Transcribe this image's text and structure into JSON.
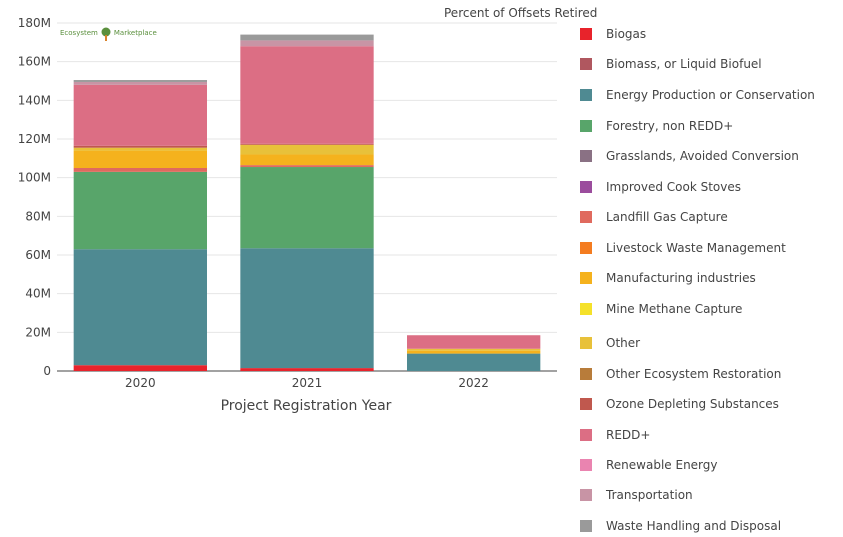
{
  "chart_data": {
    "type": "bar",
    "stacked": true,
    "categories": [
      "2020",
      "2021",
      "2022"
    ],
    "xlabel": "Project Registration Year",
    "ylabel": "",
    "ylim": [
      0,
      180000000
    ],
    "yticks": [
      "0",
      "20M",
      "40M",
      "60M",
      "80M",
      "100M",
      "120M",
      "140M",
      "160M",
      "180M"
    ],
    "legend_title": "Percent of Offsets Retired",
    "legend_position": "right",
    "grid": true,
    "series": [
      {
        "name": "Biogas",
        "color": "#e8232b",
        "values": [
          3000000,
          1500000,
          0
        ]
      },
      {
        "name": "Biomass, or Liquid Biofuel",
        "color": "#b0575f",
        "values": [
          0,
          0,
          0
        ]
      },
      {
        "name": "Energy Production or Conservation",
        "color": "#4f8a92",
        "values": [
          60000000,
          62000000,
          9000000
        ]
      },
      {
        "name": "Forestry, non REDD+",
        "color": "#58a56a",
        "values": [
          40000000,
          42000000,
          0
        ]
      },
      {
        "name": "Grasslands, Avoided Conversion",
        "color": "#8a7184",
        "values": [
          0,
          0,
          0
        ]
      },
      {
        "name": "Improved Cook Stoves",
        "color": "#9b4d9d",
        "values": [
          0,
          0,
          0
        ]
      },
      {
        "name": "Landfill Gas Capture",
        "color": "#e06a5e",
        "values": [
          2000000,
          1000000,
          0
        ]
      },
      {
        "name": "Livestock Waste Management",
        "color": "#f47c20",
        "values": [
          0,
          0,
          0
        ]
      },
      {
        "name": "Manufacturing industries",
        "color": "#f5b21d",
        "values": [
          9000000,
          5500000,
          1500000
        ]
      },
      {
        "name": "Mine Methane Capture",
        "color": "#f5e12a",
        "values": [
          0,
          0,
          0
        ]
      },
      {
        "name": "Other",
        "color": "#e8c13a",
        "values": [
          1500000,
          5000000,
          1000000
        ]
      },
      {
        "name": "Other Ecosystem Restoration",
        "color": "#b87c3a",
        "values": [
          0,
          0,
          0
        ]
      },
      {
        "name": "Ozone Depleting Substances",
        "color": "#c0584e",
        "values": [
          1000000,
          500000,
          0
        ]
      },
      {
        "name": "REDD+",
        "color": "#dc6e84",
        "values": [
          31500000,
          50500000,
          7000000
        ]
      },
      {
        "name": "Renewable Energy",
        "color": "#ea84b0",
        "values": [
          0,
          0,
          0
        ]
      },
      {
        "name": "Transportation",
        "color": "#c894a5",
        "values": [
          1500000,
          3000000,
          0
        ]
      },
      {
        "name": "Waste Handling and Disposal",
        "color": "#9a9a9a",
        "values": [
          1000000,
          3000000,
          0
        ]
      }
    ]
  },
  "logo": {
    "text_left": "Ecosystem",
    "text_right": "Marketplace"
  }
}
